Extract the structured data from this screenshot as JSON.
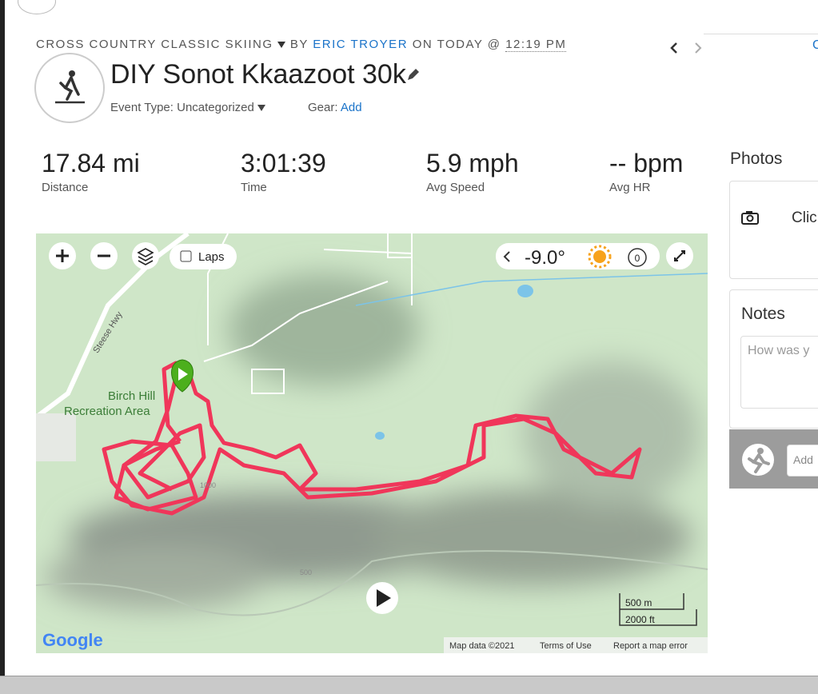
{
  "header": {
    "activity_type": "CROSS COUNTRY CLASSIC SKIING",
    "by": "BY",
    "author": "ERIC TROYER",
    "on": "ON TODAY @",
    "time": "12:19 PM",
    "title": "DIY Sonot Kkaazoot 30k",
    "event_type": "Event Type: Uncategorized",
    "gear_label": "Gear:",
    "gear_link": "Add",
    "top_right": "C"
  },
  "stats": [
    {
      "value": "17.84 mi",
      "label": "Distance"
    },
    {
      "value": "3:01:39",
      "label": "Time"
    },
    {
      "value": "5.9 mph",
      "label": "Avg Speed"
    },
    {
      "value": "-- bpm",
      "label": "Avg HR"
    }
  ],
  "map": {
    "laps": "Laps",
    "temperature": "-9.0°",
    "timer": "0",
    "road": "Steese Hwy",
    "area_line1": "Birch Hill",
    "area_line2": "Recreation Area",
    "contour_1": "1000",
    "contour_2": "500",
    "scale_metric": "500 m",
    "scale_imperial": "2000 ft",
    "logo": "Google",
    "map_data": "Map data ©2021",
    "terms": "Terms of Use",
    "report": "Report a map error"
  },
  "sidebar": {
    "photos_title": "Photos",
    "photos_prompt": "Clic",
    "notes_title": "Notes",
    "notes_placeholder": "How was y",
    "comment_placeholder": "Add"
  }
}
